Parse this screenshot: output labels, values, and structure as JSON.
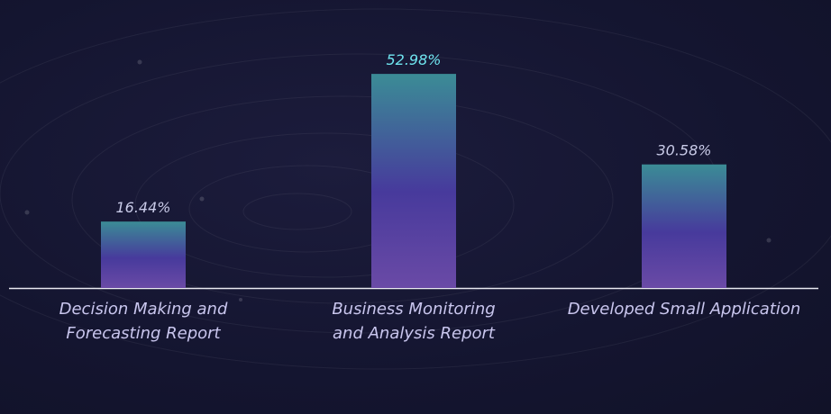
{
  "chart_data": {
    "type": "bar",
    "categories": [
      "Decision Making and Forecasting Report",
      "Business Monitoring and Analysis Report",
      "Developed Small Application"
    ],
    "values": [
      16.44,
      52.98,
      30.58
    ],
    "value_labels": [
      "16.44%",
      "52.98%",
      "30.58%"
    ]
  }
}
